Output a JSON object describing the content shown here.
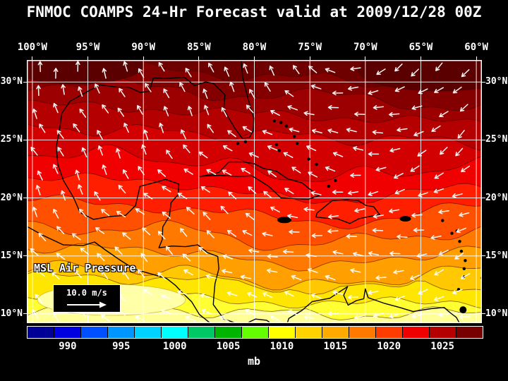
{
  "title": "FNMOC COAMPS 24-Hr Forecast valid at 2009/12/28 00Z",
  "map": {
    "x_ticks": [
      "100°W",
      "95°W",
      "90°W",
      "85°W",
      "80°W",
      "75°W",
      "70°W",
      "65°W",
      "60°W"
    ],
    "y_ticks": [
      "30°N",
      "25°N",
      "20°N",
      "15°N",
      "10°N"
    ],
    "field_label": "MSL Air Pressure",
    "wind_scale_label": "10.0 m/s"
  },
  "colorbar": {
    "unit": "mb",
    "tick_labels": [
      "990",
      "995",
      "1000",
      "1005",
      "1010",
      "1015",
      "1020",
      "1025"
    ],
    "range": [
      986.25,
      1028.75
    ],
    "colors": [
      "#000096",
      "#0000e1",
      "#0050ff",
      "#0096ff",
      "#00d2ff",
      "#00ffff",
      "#00c864",
      "#00b400",
      "#64ff00",
      "#ffff00",
      "#ffd200",
      "#ffaa00",
      "#ff7800",
      "#ff3c00",
      "#f00000",
      "#b40000",
      "#780000"
    ]
  },
  "chart_data": {
    "type": "heatmap",
    "title": "FNMOC COAMPS 24-Hr Forecast valid at 2009/12/28 00Z",
    "model": "FNMOC COAMPS",
    "forecast_hour": 24,
    "valid_time": "2009/12/28 00Z",
    "variable": "MSL Air Pressure",
    "unit": "mb",
    "lon_ticks_degW": [
      100,
      95,
      90,
      85,
      80,
      75,
      70,
      65,
      60
    ],
    "lat_ticks_degN": [
      30,
      25,
      20,
      15,
      10
    ],
    "colorbar_ticks_mb": [
      990,
      995,
      1000,
      1005,
      1010,
      1015,
      1020,
      1025
    ],
    "colorbar_range_mb": [
      986.25,
      1028.75
    ],
    "approx_zonal_mean_pressure_mb": {
      "30N": 1024,
      "25N": 1021,
      "20N": 1017,
      "15N": 1013,
      "10N": 1010
    },
    "overlay": "surface wind vectors, reference arrow 10.0 m/s",
    "region": "Gulf of Mexico and Caribbean Sea, 100W-60W / 10N-30N",
    "legend_position": "bottom",
    "grid": true
  }
}
